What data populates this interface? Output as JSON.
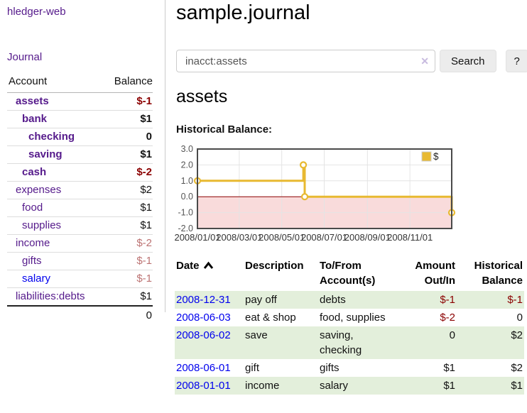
{
  "app": {
    "brand": "hledger-web",
    "nav": {
      "journal": "Journal"
    }
  },
  "colors": {
    "link_purple": "#551a8b",
    "link_blue": "#0000ee",
    "negative": "#8b0000",
    "negative_faded": "#bc7373",
    "row_stripe_green": "#e3efdb",
    "chart_line_gold": "#e8b931",
    "chart_negative_fill": "#f9dbdb",
    "chart_zero_line": "#8b0000"
  },
  "sidebar": {
    "headers": {
      "account": "Account",
      "balance": "Balance"
    },
    "accounts": [
      {
        "name": "assets",
        "indent": 1,
        "bold": true,
        "balance": "$-1",
        "negative": true,
        "faded": false,
        "unvisited": false
      },
      {
        "name": "bank",
        "indent": 2,
        "bold": true,
        "balance": "$1",
        "negative": false,
        "faded": false,
        "unvisited": false
      },
      {
        "name": "checking",
        "indent": 3,
        "bold": true,
        "balance": "0",
        "negative": false,
        "faded": false,
        "unvisited": false
      },
      {
        "name": "saving",
        "indent": 3,
        "bold": true,
        "balance": "$1",
        "negative": false,
        "faded": false,
        "unvisited": false
      },
      {
        "name": "cash",
        "indent": 2,
        "bold": true,
        "balance": "$-2",
        "negative": true,
        "faded": false,
        "unvisited": false
      },
      {
        "name": "expenses",
        "indent": 1,
        "bold": false,
        "balance": "$2",
        "negative": false,
        "faded": false,
        "unvisited": false
      },
      {
        "name": "food",
        "indent": 2,
        "bold": false,
        "balance": "$1",
        "negative": false,
        "faded": false,
        "unvisited": false
      },
      {
        "name": "supplies",
        "indent": 2,
        "bold": false,
        "balance": "$1",
        "negative": false,
        "faded": false,
        "unvisited": false
      },
      {
        "name": "income",
        "indent": 1,
        "bold": false,
        "balance": "$-2",
        "negative": true,
        "faded": true,
        "unvisited": false
      },
      {
        "name": "gifts",
        "indent": 2,
        "bold": false,
        "balance": "$-1",
        "negative": true,
        "faded": true,
        "unvisited": false
      },
      {
        "name": "salary",
        "indent": 2,
        "bold": false,
        "balance": "$-1",
        "negative": true,
        "faded": true,
        "unvisited": true
      },
      {
        "name": "liabilities:debts",
        "indent": 1,
        "bold": false,
        "balance": "$1",
        "negative": false,
        "faded": false,
        "unvisited": false
      }
    ],
    "total": "0"
  },
  "header": {
    "title": "sample.journal"
  },
  "search": {
    "query": "inacct:assets",
    "clear_icon": "✕",
    "button_label": "Search",
    "help_label": "?"
  },
  "account_page": {
    "heading": "assets",
    "chart_label": "Historical Balance:"
  },
  "chart_data": {
    "type": "step_line",
    "title": "Historical Balance:",
    "unit": "$",
    "x_range": [
      "2008-01-01",
      "2008-12-31"
    ],
    "ylim": [
      -2,
      3
    ],
    "y_ticks": [
      3.0,
      2.0,
      1.0,
      0.0,
      -1.0,
      -2.0
    ],
    "x_tick_labels": [
      "2008/01/01",
      "2008/03/01",
      "2008/05/01",
      "2008/07/01",
      "2008/09/01",
      "2008/11/01"
    ],
    "series": [
      {
        "name": "$",
        "color": "#e8b931",
        "points": [
          [
            "2008-01-01",
            1
          ],
          [
            "2008-06-01",
            2
          ],
          [
            "2008-06-03",
            0
          ],
          [
            "2008-12-31",
            -1
          ]
        ]
      }
    ],
    "legend_position": "top-right",
    "negative_region_fill": "#f9dbdb",
    "zero_line_color": "#8b0000",
    "grid": true
  },
  "register": {
    "columns": {
      "date": "Date",
      "description": "Description",
      "tofrom": "To/From Account(s)",
      "amount": "Amount Out/In",
      "balance": "Historical Balance"
    },
    "sort": {
      "column": "date",
      "direction": "ascending"
    },
    "rows": [
      {
        "date": "2008-12-31",
        "description": "pay off",
        "accounts": "debts",
        "amount": "$-1",
        "amount_neg": true,
        "balance": "$-1",
        "balance_neg": true
      },
      {
        "date": "2008-06-03",
        "description": "eat & shop",
        "accounts": "food, supplies",
        "amount": "$-2",
        "amount_neg": true,
        "balance": "0",
        "balance_neg": false
      },
      {
        "date": "2008-06-02",
        "description": "save",
        "accounts": "saving, checking",
        "amount": "0",
        "amount_neg": false,
        "balance": "$2",
        "balance_neg": false
      },
      {
        "date": "2008-06-01",
        "description": "gift",
        "accounts": "gifts",
        "amount": "$1",
        "amount_neg": false,
        "balance": "$2",
        "balance_neg": false
      },
      {
        "date": "2008-01-01",
        "description": "income",
        "accounts": "salary",
        "amount": "$1",
        "amount_neg": false,
        "balance": "$1",
        "balance_neg": false
      }
    ]
  }
}
